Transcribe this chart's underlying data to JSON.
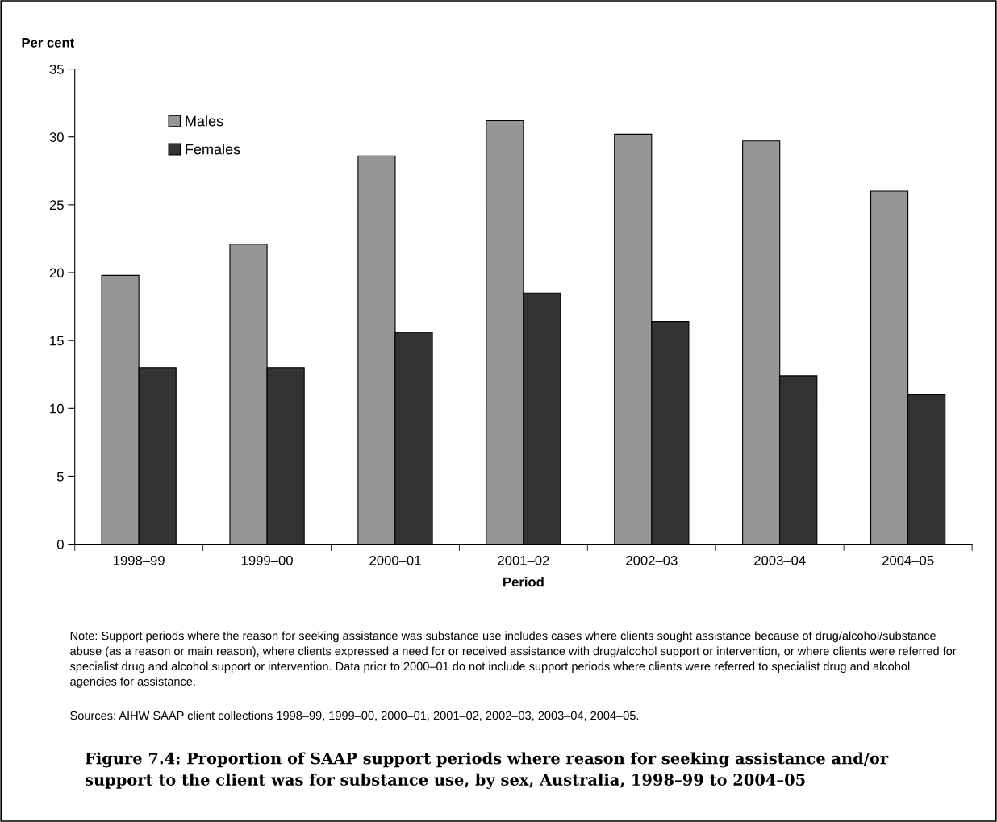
{
  "chart_data": {
    "type": "bar",
    "title": "Figure 7.4: Proportion of SAAP support periods where reason for seeking assistance and/or support to the client was for substance use, by sex, Australia, 1998–99 to 2004–05",
    "xlabel": "Period",
    "ylabel": "Per cent",
    "categories": [
      "1998–99",
      "1999–00",
      "2000–01",
      "2001–02",
      "2002–03",
      "2003–04",
      "2004–05"
    ],
    "series": [
      {
        "name": "Males",
        "color": "#969696",
        "values": [
          19.8,
          22.1,
          28.6,
          31.2,
          30.2,
          29.7,
          26.0
        ]
      },
      {
        "name": "Females",
        "color": "#333333",
        "values": [
          13.0,
          13.0,
          15.6,
          18.5,
          16.4,
          12.4,
          11.0
        ]
      }
    ],
    "ylim": [
      0,
      35
    ],
    "yticks": [
      0,
      5,
      10,
      15,
      20,
      25,
      30,
      35
    ],
    "grid": false,
    "legend": "top left",
    "annotations": [
      "Note: Support periods where the reason for seeking assistance was substance use includes cases where clients sought assistance because of drug/alcohol/substance abuse (as a reason or main reason), where clients expressed a need for or received assistance with drug/alcohol support or intervention, or where clients were referred for specialist drug and alcohol support or intervention. Data prior to 2000–01 do not include support periods where clients were referred to specialist drug and alcohol agencies for assistance.",
      "Sources: AIHW SAAP client collections 1998–99, 1999–00, 2000–01, 2001–02, 2002–03, 2003–04, 2004–05."
    ]
  }
}
